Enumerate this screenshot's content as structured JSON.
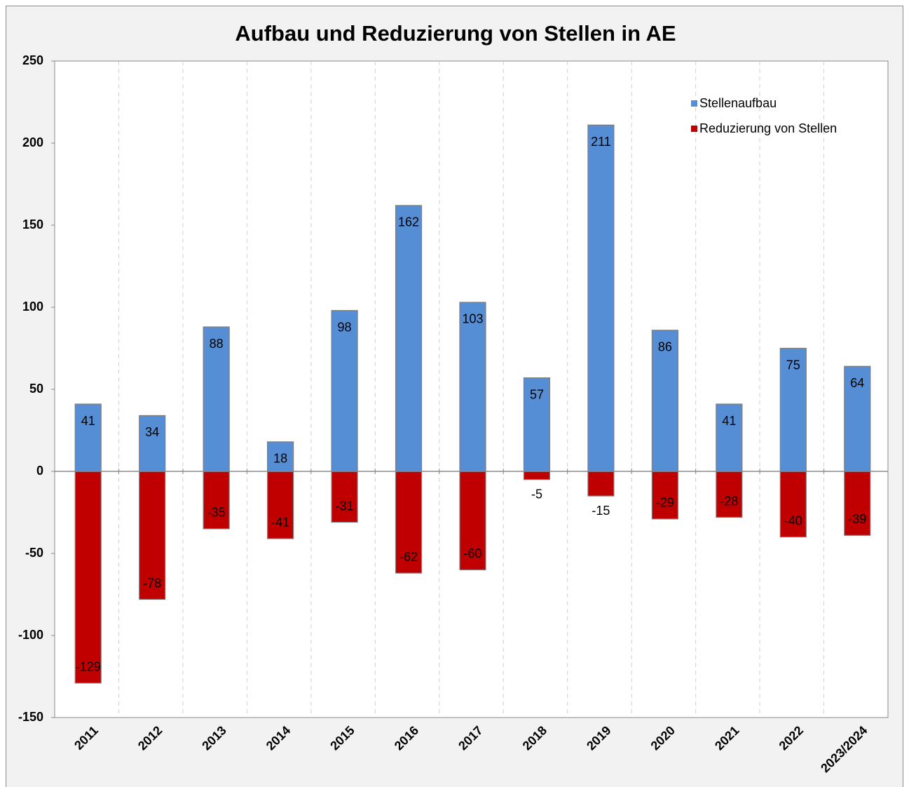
{
  "chart_data": {
    "type": "bar",
    "title": "Aufbau und Reduzierung von Stellen in AE",
    "categories": [
      "2011",
      "2012",
      "2013",
      "2014",
      "2015",
      "2016",
      "2017",
      "2018",
      "2019",
      "2020",
      "2021",
      "2022",
      "2023/2024"
    ],
    "series": [
      {
        "name": "Stellenaufbau",
        "color": "#558ed5",
        "values": [
          41,
          34,
          88,
          18,
          98,
          162,
          103,
          57,
          211,
          86,
          41,
          75,
          64
        ]
      },
      {
        "name": "Reduzierung von Stellen",
        "color": "#c00000",
        "values": [
          -129,
          -78,
          -35,
          -41,
          -31,
          -62,
          -60,
          -5,
          -15,
          -29,
          -28,
          -40,
          -39
        ]
      }
    ],
    "ylim": [
      -150,
      250
    ],
    "yticks": [
      -150,
      -100,
      -50,
      0,
      50,
      100,
      150,
      200,
      250
    ],
    "grid": true,
    "legend": "top-right"
  }
}
